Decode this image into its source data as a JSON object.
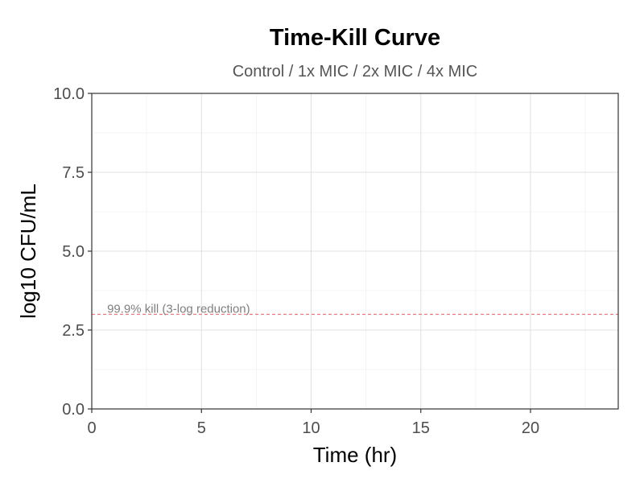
{
  "chart_data": {
    "type": "line",
    "title": "Time-Kill Curve",
    "subtitle": "Control / 1x MIC / 2x MIC / 4x MIC",
    "xlabel": "Time (hr)",
    "ylabel": "log10 CFU/mL",
    "xlim": [
      0,
      24
    ],
    "ylim": [
      0,
      10
    ],
    "x_ticks": [
      0,
      5,
      10,
      15,
      20
    ],
    "x_tick_labels": [
      "0",
      "5",
      "10",
      "15",
      "20"
    ],
    "y_ticks": [
      0,
      2.5,
      5,
      7.5,
      10
    ],
    "y_tick_labels": [
      "0.0",
      "2.5",
      "5.0",
      "7.5",
      "10.0"
    ],
    "x_minor_grid": [
      2.5,
      7.5,
      12.5,
      17.5,
      22.5
    ],
    "y_minor_grid": [
      1.25,
      3.75,
      6.25,
      8.75
    ],
    "grid": true,
    "series": [],
    "reference_lines": [
      {
        "y": 3,
        "label": "99.9% kill (3-log reduction)",
        "label_x": 0.7,
        "color": "#e06666",
        "style": "dashed"
      }
    ],
    "colors": {
      "background": "#ffffff",
      "panel_border": "#333333",
      "grid_major": "#e0e0e0",
      "grid_minor": "#f0f0f0",
      "title": "#000000",
      "subtitle": "#555555",
      "tick_label": "#4d4d4d",
      "axis_label": "#000000",
      "ref_label": "#7f7f7f"
    }
  }
}
